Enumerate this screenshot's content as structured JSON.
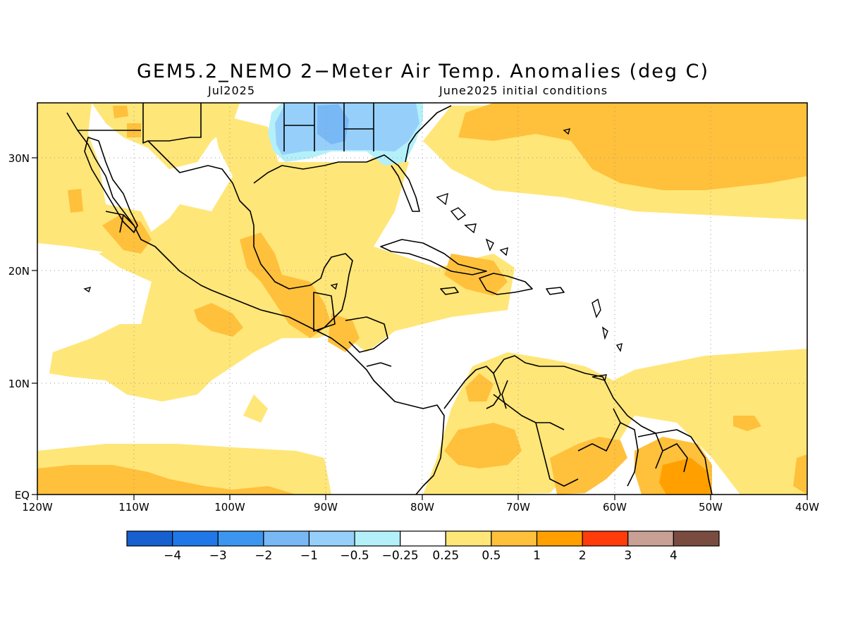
{
  "title": "GEM5.2_NEMO 2−Meter Air Temp. Anomalies (deg C)",
  "subtitle_left": "Jul2025",
  "subtitle_right": "June2025 initial conditions",
  "lon_labels": [
    "120W",
    "110W",
    "100W",
    "90W",
    "80W",
    "70W",
    "60W",
    "50W",
    "40W"
  ],
  "lat_labels": [
    "EQ",
    "10N",
    "20N",
    "30N"
  ],
  "colorbar": {
    "colors": [
      "#1660d0",
      "#2078e8",
      "#3c96f0",
      "#78b8f5",
      "#96d0fa",
      "#b4f0fa",
      "#ffffff",
      "#ffe678",
      "#ffc03c",
      "#ffa000",
      "#ff3c0a",
      "#c8a094",
      "#7a4c40"
    ],
    "labels": [
      "−4",
      "−3",
      "−2",
      "−1",
      "−0.5",
      "−0.25",
      "0.25",
      "0.5",
      "1",
      "2",
      "3",
      "4"
    ]
  },
  "palette": {
    "light_yellow": "#ffe678",
    "light_orange": "#ffc03c",
    "orange": "#ffa000",
    "light_blue": "#96d0fa",
    "blue": "#78b8f5"
  }
}
